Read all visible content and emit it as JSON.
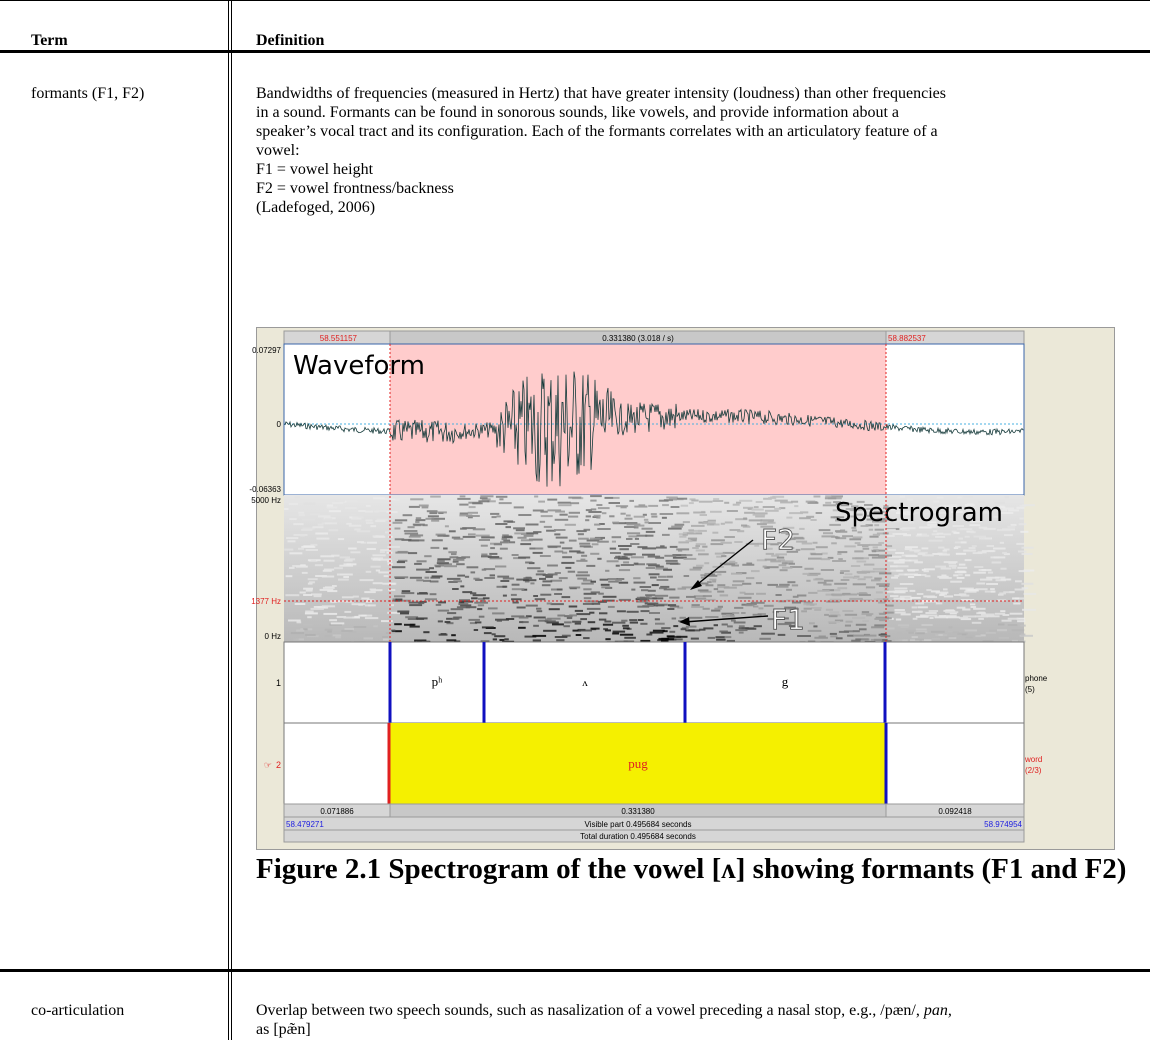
{
  "table": {
    "header": {
      "term": "Term",
      "definition": "Definition"
    },
    "rows": [
      {
        "term": "formants (F1, F2)",
        "definition_lines": [
          "Bandwidths of frequencies (measured in Hertz) that have greater intensity (loudness) than other frequencies",
          "in a sound. Formants can be found in sonorous sounds, like vowels, and provide information about a",
          "speaker’s vocal tract and its configuration. Each of the formants correlates with an articulatory feature of a",
          "vowel:",
          "F1 = vowel height",
          "F2 = vowel frontness/backness",
          "(Ladefoged, 2006)"
        ]
      },
      {
        "term": "co-articulation",
        "definition_lines": [
          "Overlap between two speech sounds, such as nasalization of a vowel preceding a nasal stop, e.g., /pæn/, ",
          "as [pæ̃n]"
        ],
        "definition_italic": "pan,"
      }
    ]
  },
  "figure": {
    "caption": "Figure 2.1 Spectrogram of the vowel [ʌ] showing formants (F1 and F2)",
    "top_bar": {
      "left_time": "58.551157",
      "center": "0.331380 (3.018 / s)",
      "right_time": "58.882537"
    },
    "waveform": {
      "label": "Waveform",
      "y_max": "0.07297",
      "y_zero": "0",
      "y_min": "-0.06363"
    },
    "spectrogram": {
      "label": "Spectrogram",
      "y_max": "5000 Hz",
      "y_cursor": "1377 Hz",
      "y_min": "0 Hz",
      "f1": "F1",
      "f2": "F2"
    },
    "tier1": {
      "number": "1",
      "name": "phone",
      "count": "(5)",
      "segments": [
        "pʰ",
        "ʌ",
        "g"
      ]
    },
    "tier2": {
      "number": "2",
      "pointer": "☞",
      "name": "word",
      "count": "(2/3)",
      "word": "pug"
    },
    "bottom": {
      "left_dur": "0.071886",
      "sel_dur": "0.331380",
      "right_dur": "0.092418",
      "visible_start": "58.479271",
      "visible_label": "Visible part 0.495684 seconds",
      "visible_end": "58.974954",
      "total_label": "Total duration 0.495684 seconds"
    }
  }
}
